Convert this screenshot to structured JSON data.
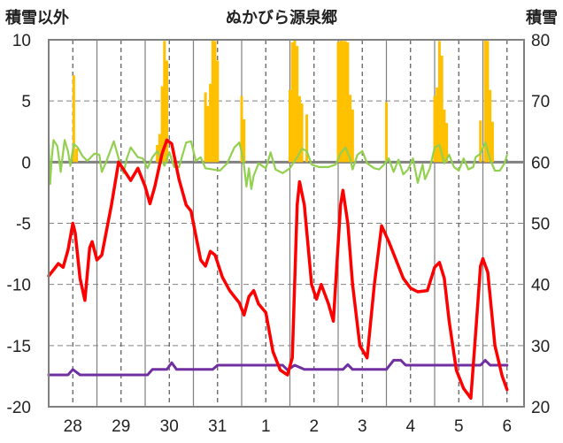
{
  "chart_data": {
    "type": "line",
    "title": "ぬかびら源泉郷",
    "left_axis_label": "積雪以外",
    "right_axis_label": "積雪",
    "y_left_ticks": [
      "10",
      "5",
      "0",
      "-5",
      "-10",
      "-15",
      "-20"
    ],
    "y_right_ticks": [
      "80",
      "70",
      "60",
      "50",
      "40",
      "30",
      "20"
    ],
    "x_categories": [
      "28",
      "29",
      "30",
      "31",
      "1",
      "2",
      "3",
      "4",
      "5",
      "6"
    ],
    "ylim_left": [
      -20,
      10
    ],
    "ylim_right": [
      20,
      80
    ],
    "grid": true,
    "colors": {
      "temperature": "#ff0000",
      "snow_depth": "#7030a0",
      "precipitation": "#ffc000",
      "wind": "#92d050",
      "zero_line": "#808080",
      "grid": "#808080"
    },
    "series": [
      {
        "key": "temperature",
        "axis": "left",
        "points": [
          [
            0,
            -9.3
          ],
          [
            0.1,
            -8.8
          ],
          [
            0.2,
            -8.3
          ],
          [
            0.3,
            -8.6
          ],
          [
            0.4,
            -7.2
          ],
          [
            0.5,
            -5
          ],
          [
            0.55,
            -5.8
          ],
          [
            0.65,
            -9.5
          ],
          [
            0.75,
            -11.3
          ],
          [
            0.85,
            -7
          ],
          [
            0.9,
            -6.5
          ],
          [
            1.0,
            -8
          ],
          [
            1.1,
            -7.6
          ],
          [
            1.3,
            -3.5
          ],
          [
            1.45,
            0
          ],
          [
            1.55,
            -0.6
          ],
          [
            1.7,
            -1.5
          ],
          [
            1.85,
            -0.5
          ],
          [
            2.0,
            -2
          ],
          [
            2.1,
            -3.4
          ],
          [
            2.2,
            -2
          ],
          [
            2.35,
            0.7
          ],
          [
            2.45,
            1.8
          ],
          [
            2.55,
            1.5
          ],
          [
            2.7,
            -1.4
          ],
          [
            2.85,
            -3.5
          ],
          [
            2.95,
            -4
          ],
          [
            3.0,
            -5
          ],
          [
            3.15,
            -8
          ],
          [
            3.25,
            -8.5
          ],
          [
            3.35,
            -7.3
          ],
          [
            3.45,
            -7.6
          ],
          [
            3.6,
            -9.4
          ],
          [
            3.75,
            -10.5
          ],
          [
            3.85,
            -11
          ],
          [
            3.95,
            -11.5
          ],
          [
            4.05,
            -12.5
          ],
          [
            4.15,
            -11
          ],
          [
            4.25,
            -10.5
          ],
          [
            4.35,
            -11.6
          ],
          [
            4.5,
            -12.3
          ],
          [
            4.65,
            -15.5
          ],
          [
            4.8,
            -17
          ],
          [
            4.95,
            -17.4
          ],
          [
            5.05,
            -16
          ],
          [
            5.15,
            -3.5
          ],
          [
            5.2,
            -1.6
          ],
          [
            5.3,
            -3.5
          ],
          [
            5.45,
            -10
          ],
          [
            5.55,
            -11.2
          ],
          [
            5.65,
            -10
          ],
          [
            5.8,
            -11.6
          ],
          [
            5.9,
            -13
          ],
          [
            6.05,
            -3.5
          ],
          [
            6.1,
            -2.3
          ],
          [
            6.2,
            -5
          ],
          [
            6.3,
            -10
          ],
          [
            6.45,
            -15
          ],
          [
            6.6,
            -16
          ],
          [
            6.75,
            -10
          ],
          [
            6.9,
            -5.2
          ],
          [
            7.05,
            -6.5
          ],
          [
            7.2,
            -8
          ],
          [
            7.35,
            -9.5
          ],
          [
            7.5,
            -10.3
          ],
          [
            7.65,
            -10.6
          ],
          [
            7.85,
            -10.5
          ],
          [
            8.0,
            -8.6
          ],
          [
            8.1,
            -8.2
          ],
          [
            8.2,
            -9.5
          ],
          [
            8.3,
            -13
          ],
          [
            8.45,
            -17
          ],
          [
            8.6,
            -18.5
          ],
          [
            8.75,
            -19.3
          ],
          [
            8.85,
            -14
          ],
          [
            8.95,
            -8.5
          ],
          [
            9.0,
            -7.9
          ],
          [
            9.1,
            -9
          ],
          [
            9.25,
            -15
          ],
          [
            9.4,
            -17.5
          ],
          [
            9.5,
            -18.6
          ]
        ]
      },
      {
        "key": "snow_depth",
        "axis": "right",
        "points": [
          [
            0,
            25.2
          ],
          [
            0.4,
            25.2
          ],
          [
            0.5,
            26.1
          ],
          [
            0.65,
            25.2
          ],
          [
            2.05,
            25.2
          ],
          [
            2.15,
            26.1
          ],
          [
            2.45,
            26.1
          ],
          [
            2.55,
            27.2
          ],
          [
            2.65,
            26.1
          ],
          [
            3.4,
            26.1
          ],
          [
            3.5,
            26.8
          ],
          [
            4.85,
            26.8
          ],
          [
            4.95,
            26
          ],
          [
            5.1,
            26.8
          ],
          [
            5.3,
            26.1
          ],
          [
            6.1,
            26.1
          ],
          [
            6.2,
            26.9
          ],
          [
            6.3,
            26.1
          ],
          [
            7.0,
            26.1
          ],
          [
            7.15,
            27.6
          ],
          [
            7.3,
            27.6
          ],
          [
            7.4,
            26.8
          ],
          [
            8.95,
            26.8
          ],
          [
            9.05,
            27.6
          ],
          [
            9.15,
            26.8
          ],
          [
            9.5,
            26.8
          ]
        ]
      },
      {
        "key": "wind",
        "axis": "left",
        "points": [
          [
            0,
            1.6
          ],
          [
            0.03,
            -1.8
          ],
          [
            0.06,
            0.2
          ],
          [
            0.1,
            1.8
          ],
          [
            0.18,
            1.3
          ],
          [
            0.25,
            -0.8
          ],
          [
            0.33,
            1.8
          ],
          [
            0.4,
            0.9
          ],
          [
            0.45,
            -0.3
          ],
          [
            0.52,
            1.5
          ],
          [
            0.6,
            1.2
          ],
          [
            0.7,
            0.5
          ],
          [
            0.8,
            0.1
          ],
          [
            0.95,
            0.7
          ],
          [
            1.05,
            0.6
          ],
          [
            1.1,
            -0.8
          ],
          [
            1.2,
            0.1
          ],
          [
            1.35,
            1.7
          ],
          [
            1.45,
            0.3
          ],
          [
            1.55,
            -0.9
          ],
          [
            1.62,
            0.3
          ],
          [
            1.7,
            1.2
          ],
          [
            1.85,
            0.4
          ],
          [
            1.95,
            0.3
          ],
          [
            2.05,
            -0.5
          ],
          [
            2.15,
            0.4
          ],
          [
            2.25,
            0.9
          ],
          [
            2.4,
            -0.3
          ],
          [
            2.5,
            0.8
          ],
          [
            2.55,
            0.2
          ],
          [
            2.6,
            -0.4
          ],
          [
            2.7,
            -0.4
          ],
          [
            2.85,
            1.6
          ],
          [
            2.95,
            1.7
          ],
          [
            3.05,
            0.1
          ],
          [
            3.15,
            0.4
          ],
          [
            3.25,
            -0.5
          ],
          [
            3.4,
            -0.6
          ],
          [
            3.55,
            -0.7
          ],
          [
            3.7,
            -0.1
          ],
          [
            3.85,
            1.2
          ],
          [
            3.95,
            1.6
          ],
          [
            4.0,
            0.8
          ],
          [
            4.05,
            -0.3
          ],
          [
            4.1,
            -2
          ],
          [
            4.15,
            -0.5
          ],
          [
            4.2,
            -2.2
          ],
          [
            4.25,
            -1.1
          ],
          [
            4.35,
            -0.1
          ],
          [
            4.5,
            -0.5
          ],
          [
            4.6,
            0.8
          ],
          [
            4.7,
            -0.6
          ],
          [
            4.85,
            -0.9
          ],
          [
            5.0,
            -0.5
          ],
          [
            5.15,
            0.4
          ],
          [
            5.25,
            1.1
          ],
          [
            5.35,
            0.9
          ],
          [
            5.45,
            -0.2
          ],
          [
            5.6,
            -0.4
          ],
          [
            5.8,
            -0.4
          ],
          [
            5.95,
            -0.2
          ],
          [
            6.05,
            0.7
          ],
          [
            6.15,
            1.2
          ],
          [
            6.25,
            0.3
          ],
          [
            6.3,
            -0.6
          ],
          [
            6.4,
            0.6
          ],
          [
            6.5,
            0.9
          ],
          [
            6.6,
            -0.1
          ],
          [
            6.75,
            -0.5
          ],
          [
            6.85,
            -0.6
          ],
          [
            6.95,
            -0.2
          ],
          [
            7.05,
            0.3
          ],
          [
            7.15,
            -0.8
          ],
          [
            7.25,
            0.2
          ],
          [
            7.35,
            -1
          ],
          [
            7.45,
            -0.6
          ],
          [
            7.55,
            0.3
          ],
          [
            7.65,
            -1.7
          ],
          [
            7.75,
            -0.2
          ],
          [
            7.8,
            -1.4
          ],
          [
            7.9,
            -0.5
          ],
          [
            8.0,
            1.2
          ],
          [
            8.1,
            1.4
          ],
          [
            8.2,
            -0.1
          ],
          [
            8.3,
            0.6
          ],
          [
            8.4,
            -0.4
          ],
          [
            8.5,
            -0.7
          ],
          [
            8.6,
            0.3
          ],
          [
            8.7,
            -0.6
          ],
          [
            8.8,
            -0.4
          ],
          [
            8.85,
            0.4
          ],
          [
            8.95,
            0.7
          ],
          [
            9.05,
            1.6
          ],
          [
            9.15,
            0.2
          ],
          [
            9.25,
            -0.7
          ],
          [
            9.35,
            -0.7
          ],
          [
            9.45,
            -0.1
          ],
          [
            9.5,
            0.6
          ]
        ]
      },
      {
        "key": "precipitation",
        "axis": "left",
        "type": "bar",
        "bars": [
          [
            0.52,
            7.1
          ],
          [
            0.58,
            1.1
          ],
          [
            2.25,
            1.4
          ],
          [
            2.3,
            2.3
          ],
          [
            2.35,
            6.2
          ],
          [
            2.4,
            9.9
          ],
          [
            2.45,
            8.3
          ],
          [
            3.25,
            5.7
          ],
          [
            3.3,
            4.6
          ],
          [
            3.35,
            6.4
          ],
          [
            3.4,
            10
          ],
          [
            3.45,
            9.9
          ],
          [
            3.5,
            8.3
          ],
          [
            4.0,
            5.4
          ],
          [
            4.05,
            3.5
          ],
          [
            5.0,
            5.9
          ],
          [
            5.05,
            9.8
          ],
          [
            5.1,
            10
          ],
          [
            5.15,
            9.5
          ],
          [
            5.2,
            5.4
          ],
          [
            5.25,
            4.8
          ],
          [
            5.35,
            3.9
          ],
          [
            6.0,
            9.8
          ],
          [
            6.05,
            10
          ],
          [
            6.1,
            9.9
          ],
          [
            6.15,
            9.9
          ],
          [
            6.2,
            9.8
          ],
          [
            6.25,
            5.5
          ],
          [
            6.3,
            4.3
          ],
          [
            7.0,
            4.9
          ],
          [
            8.0,
            5.4
          ],
          [
            8.05,
            6.1
          ],
          [
            8.1,
            9.9
          ],
          [
            8.15,
            8.7
          ],
          [
            8.2,
            4.3
          ],
          [
            8.25,
            3.2
          ],
          [
            8.95,
            3.4
          ],
          [
            9.05,
            10
          ],
          [
            9.1,
            9.9
          ],
          [
            9.15,
            5.9
          ],
          [
            9.2,
            3.3
          ]
        ]
      }
    ]
  }
}
